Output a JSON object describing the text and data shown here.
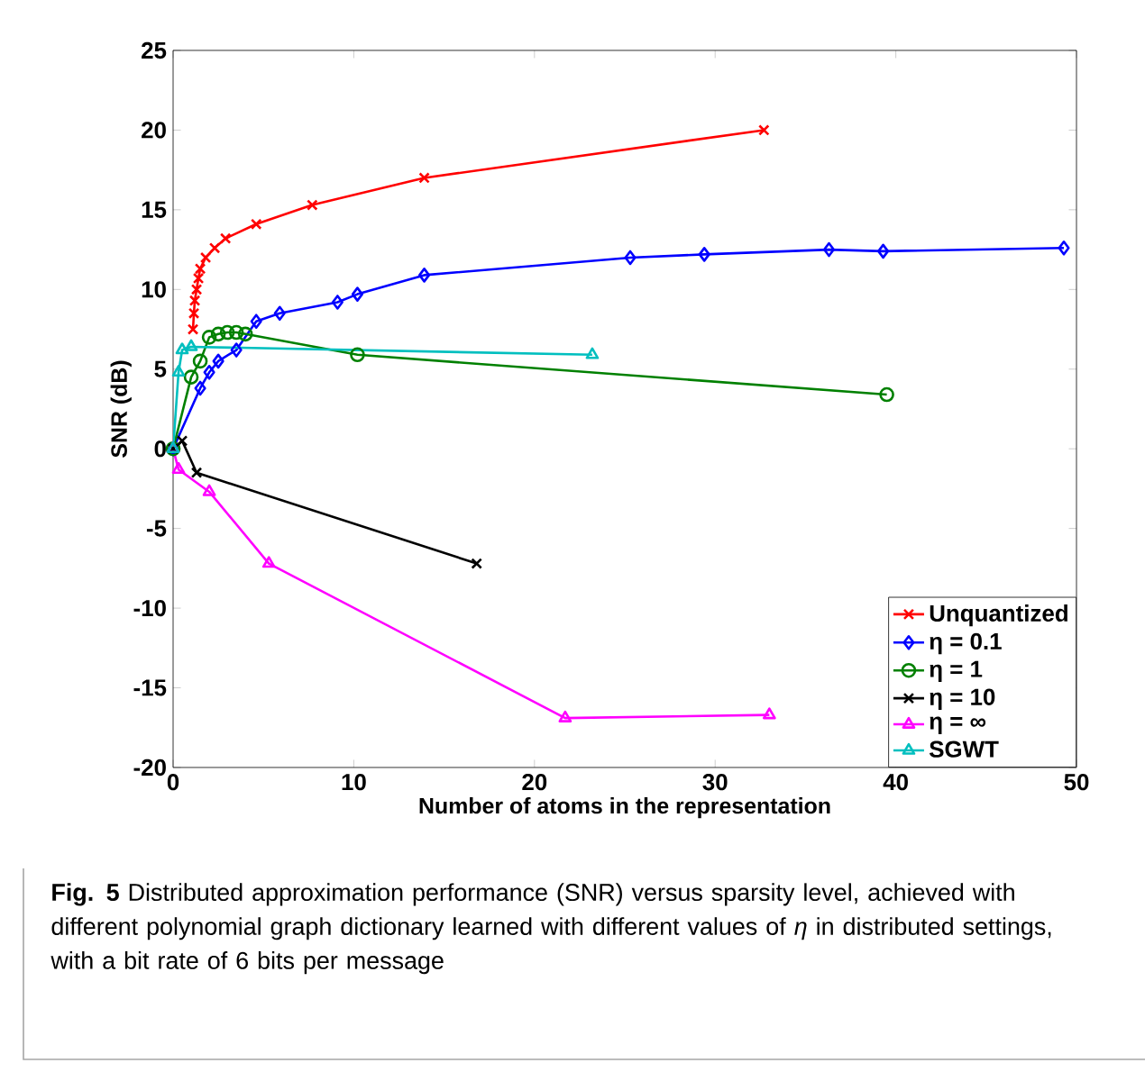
{
  "chart_data": {
    "type": "line",
    "xlabel": "Number of atoms in the representation",
    "ylabel": "SNR (dB)",
    "xlim": [
      0,
      50
    ],
    "ylim": [
      -20,
      25
    ],
    "xticks": [
      0,
      10,
      20,
      30,
      40,
      50
    ],
    "yticks": [
      -20,
      -15,
      -10,
      -5,
      0,
      5,
      10,
      15,
      20,
      25
    ],
    "grid": false,
    "legend": "bottom right",
    "line_style": "solid",
    "series": [
      {
        "name": "Unquantized",
        "color": "#ff0000",
        "marker": "cross",
        "x": [
          1.1,
          1.15,
          1.2,
          1.3,
          1.4,
          1.5,
          1.8,
          2.3,
          2.9,
          4.6,
          7.7,
          13.9,
          32.7
        ],
        "values": [
          7.5,
          8.5,
          9.3,
          10,
          10.7,
          11.3,
          12,
          12.6,
          13.2,
          14.1,
          15.3,
          17,
          20
        ]
      },
      {
        "name": "η = 0.1",
        "color": "#0000ff",
        "marker": "diamond",
        "x": [
          0,
          1.5,
          2,
          2.5,
          3.5,
          4.6,
          5.9,
          9.1,
          10.2,
          13.9,
          25.3,
          29.4,
          36.3,
          39.3,
          49.3
        ],
        "values": [
          0,
          3.8,
          4.8,
          5.5,
          6.2,
          8,
          8.5,
          9.2,
          9.7,
          10.9,
          12,
          12.2,
          12.5,
          12.4,
          12.6
        ]
      },
      {
        "name": "η = 1",
        "color": "#008000",
        "marker": "circle",
        "x": [
          0,
          1,
          1.5,
          2,
          2.5,
          3,
          3.5,
          4,
          10.2,
          39.5
        ],
        "values": [
          0,
          4.5,
          5.5,
          7,
          7.2,
          7.3,
          7.3,
          7.2,
          5.9,
          3.4
        ]
      },
      {
        "name": "η = 10",
        "color": "#000000",
        "marker": "cross",
        "x": [
          0,
          0.5,
          1.3,
          16.8
        ],
        "values": [
          0,
          0.5,
          -1.5,
          -7.2
        ]
      },
      {
        "name": "η = ∞",
        "color": "#ff00ff",
        "marker": "triangle",
        "x": [
          0,
          0.3,
          2,
          5.3,
          21.7,
          33
        ],
        "values": [
          0,
          -1.3,
          -2.7,
          -7.2,
          -16.9,
          -16.7
        ]
      },
      {
        "name": "SGWT",
        "color": "#00bfbf",
        "marker": "triangle",
        "x": [
          0,
          0.3,
          0.5,
          1,
          23.2
        ],
        "values": [
          0,
          4.8,
          6.2,
          6.4,
          5.9
        ]
      }
    ],
    "annotations": [
      "**Fig. 5** Distributed approximation performance (SNR) versus sparsity level, achieved with different polynomial graph dictionary learned with different values of *η* in distributed settings, with a bit rate of 6 bits per message"
    ]
  }
}
